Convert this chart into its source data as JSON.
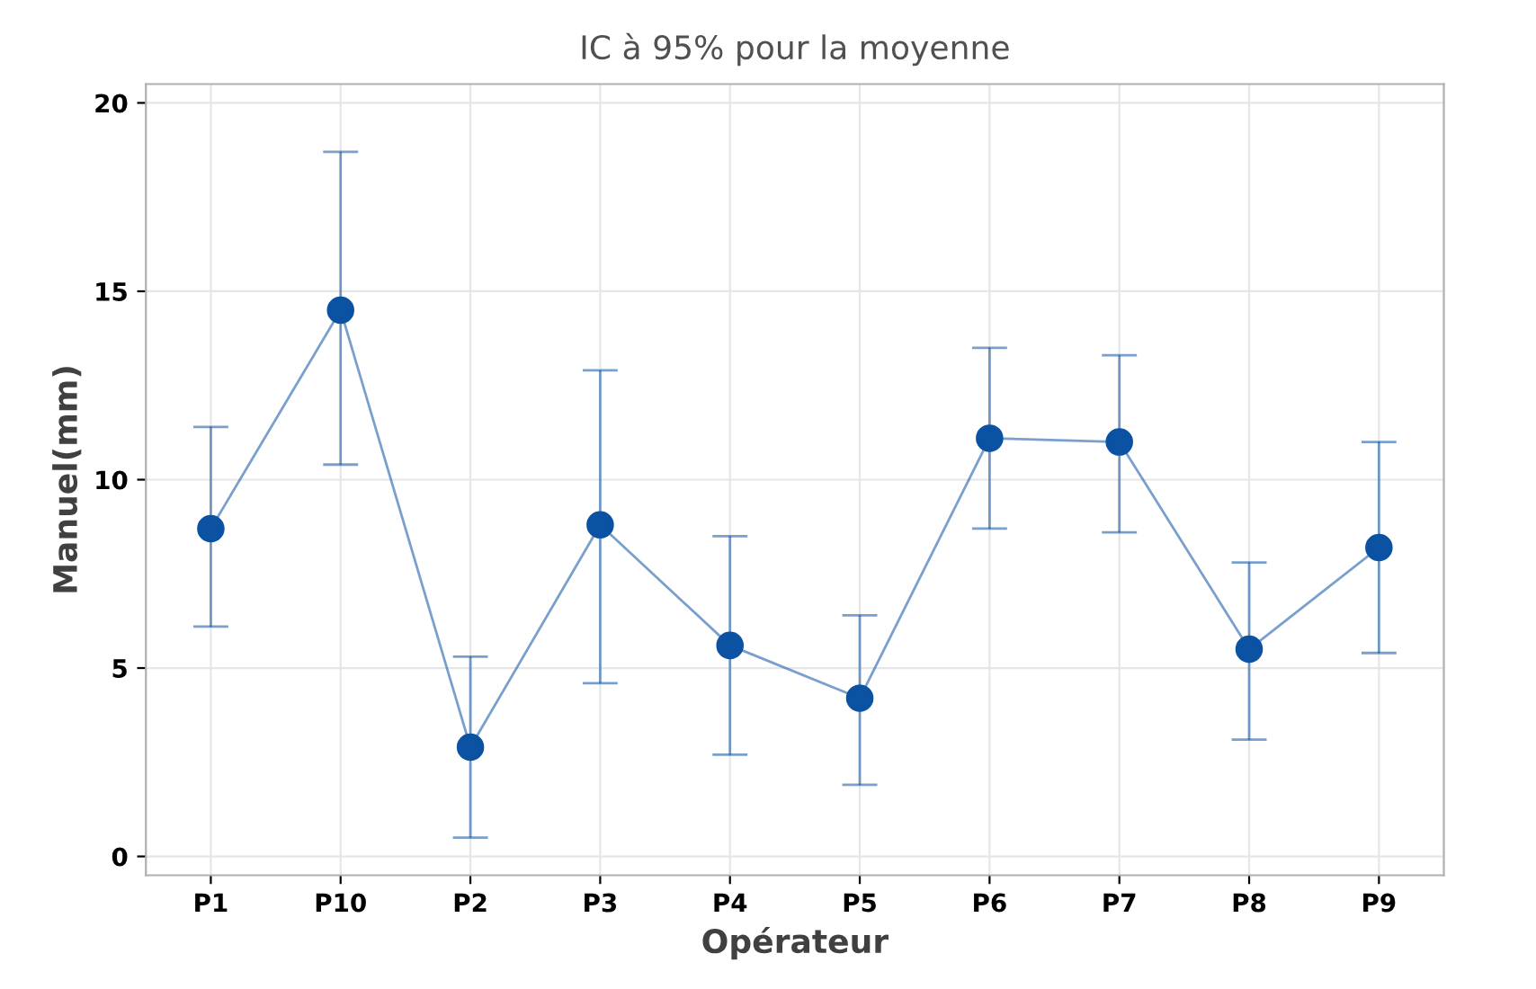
{
  "chart_data": {
    "type": "line",
    "title": "IC à 95% pour la moyenne",
    "xlabel": "Opérateur",
    "ylabel": "Manuel(mm)",
    "categories": [
      "P1",
      "P10",
      "P2",
      "P3",
      "P4",
      "P5",
      "P6",
      "P7",
      "P8",
      "P9"
    ],
    "series": [
      {
        "color": "#0b52a3",
        "values": [
          8.7,
          14.5,
          2.9,
          8.8,
          5.6,
          4.2,
          11.1,
          11.0,
          5.5,
          8.2
        ],
        "errors": [
          [
            6.1,
            11.4
          ],
          [
            10.4,
            18.7
          ],
          [
            0.5,
            5.3
          ],
          [
            4.6,
            12.9
          ],
          [
            2.7,
            8.5
          ],
          [
            1.9,
            6.4
          ],
          [
            8.7,
            13.5
          ],
          [
            8.6,
            13.3
          ],
          [
            3.1,
            7.8
          ],
          [
            5.4,
            11.0
          ]
        ]
      }
    ],
    "ylim": [
      -0.5,
      20.5
    ],
    "yticks": [
      0,
      5,
      10,
      15,
      20
    ],
    "grid": true,
    "marker": "circle",
    "line_style": "solid",
    "legend": false
  }
}
